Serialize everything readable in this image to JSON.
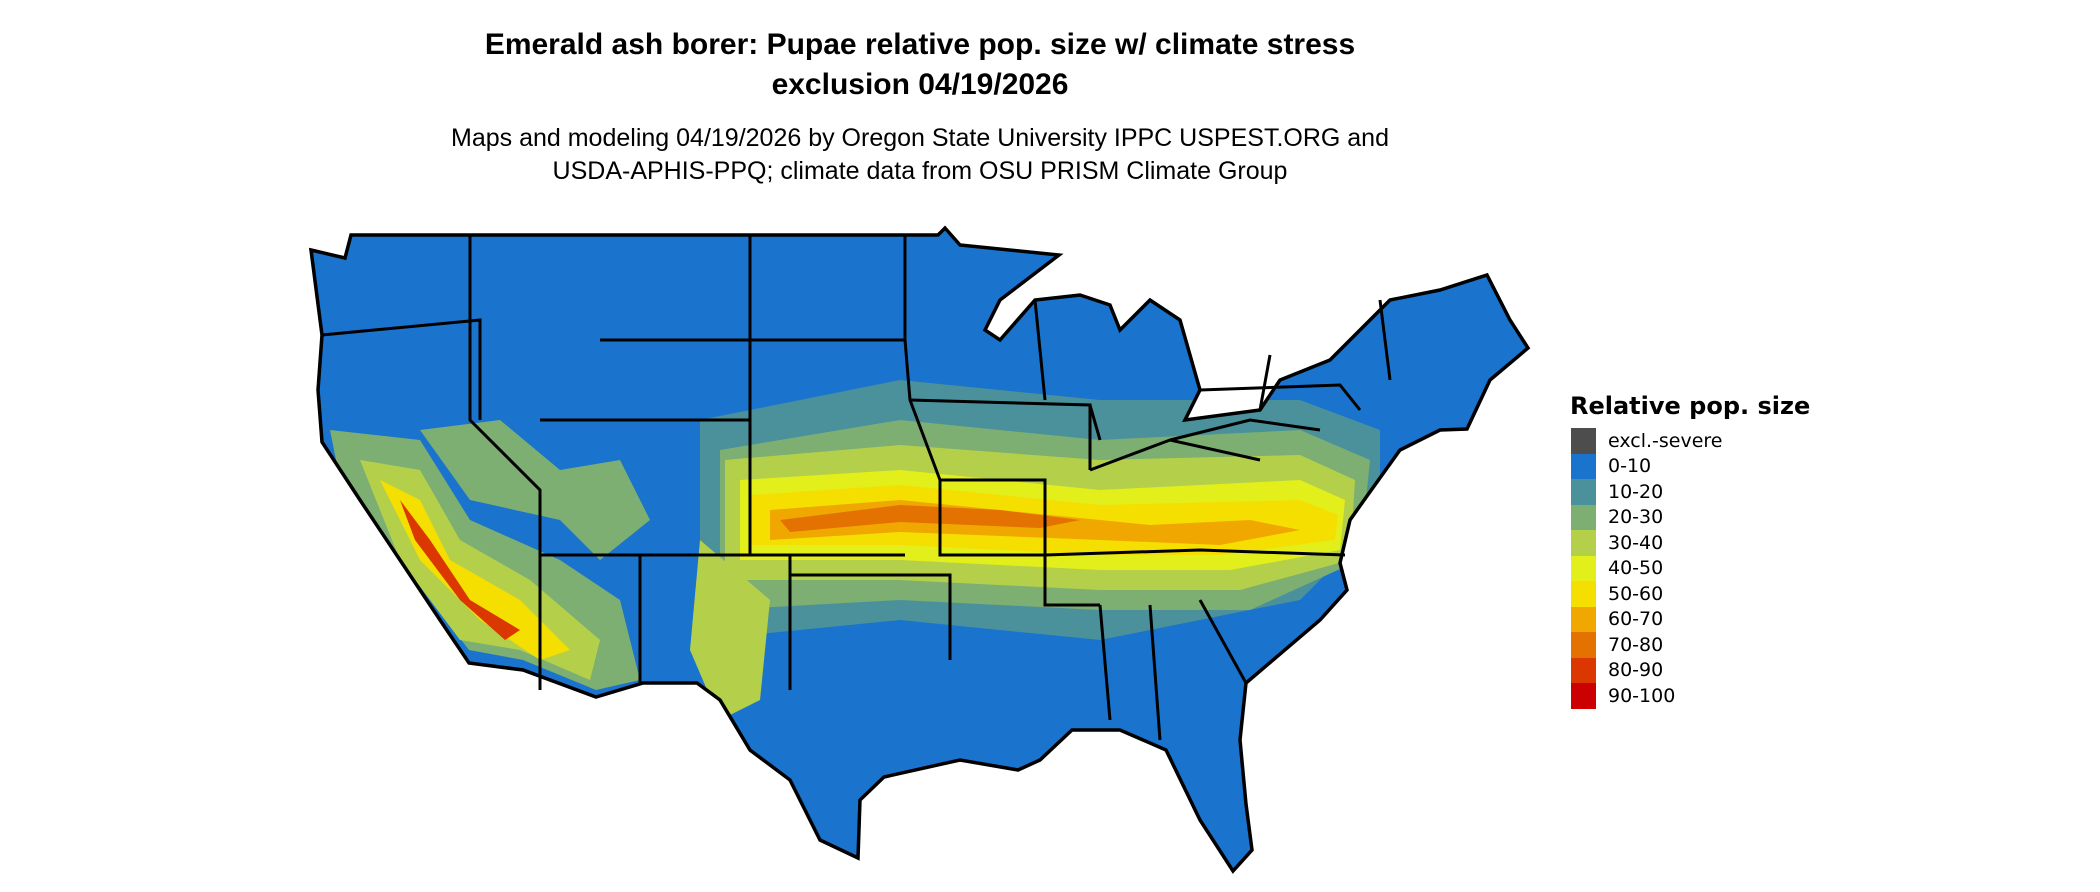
{
  "title_line1": "Emerald ash borer: Pupae relative pop. size w/ climate stress",
  "title_line2": "exclusion 04/19/2026",
  "subtitle_line1": "Maps and modeling 04/19/2026 by Oregon State University IPPC USPEST.ORG and",
  "subtitle_line2": "USDA-APHIS-PPQ; climate data from OSU PRISM Climate Group",
  "map": {
    "region": "Contiguous United States",
    "state_borders": true,
    "border_color": "#000000"
  },
  "legend": {
    "title": "Relative pop. size",
    "placement": "right",
    "items": [
      {
        "label": "excl.-severe",
        "color": "#4d4d4d"
      },
      {
        "label": "0-10",
        "color": "#1a73cc"
      },
      {
        "label": "10-20",
        "color": "#4a919c"
      },
      {
        "label": "20-30",
        "color": "#7daf72"
      },
      {
        "label": "30-40",
        "color": "#b4d04a"
      },
      {
        "label": "40-50",
        "color": "#e3ef1a"
      },
      {
        "label": "50-60",
        "color": "#f5df00"
      },
      {
        "label": "60-70",
        "color": "#f0a800"
      },
      {
        "label": "70-80",
        "color": "#e37200"
      },
      {
        "label": "80-90",
        "color": "#da3800"
      },
      {
        "label": "90-100",
        "color": "#cc0000"
      }
    ]
  }
}
